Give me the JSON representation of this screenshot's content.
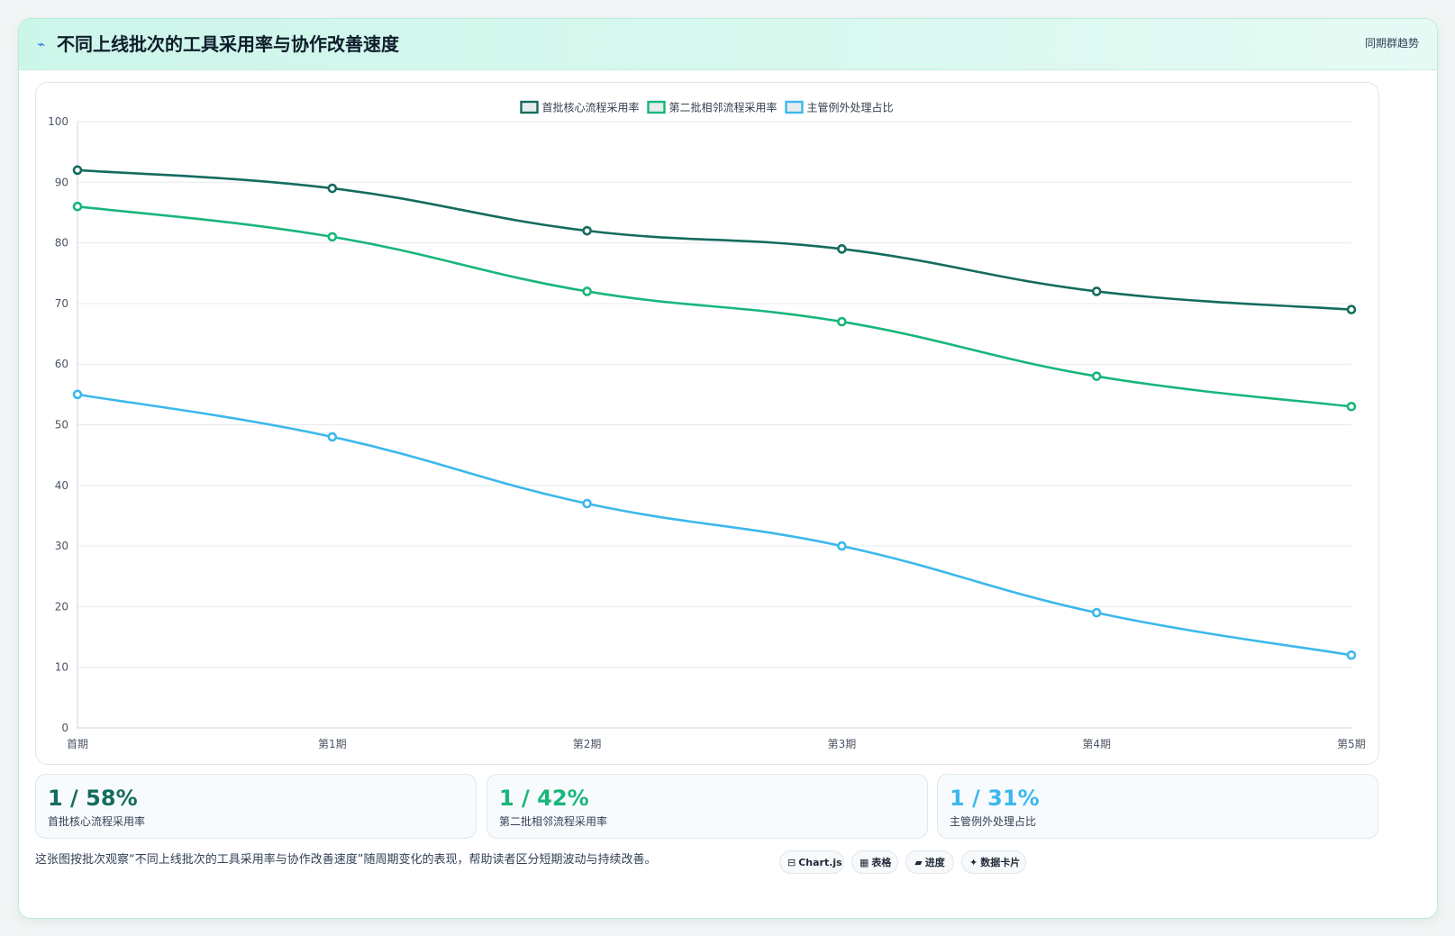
{
  "header": {
    "icon": "trend-icon",
    "title": "不同上线批次的工具采用率与协作改善速度",
    "right_label": "同期群趋势"
  },
  "chart_data": {
    "type": "line",
    "categories": [
      "首期",
      "第1期",
      "第2期",
      "第3期",
      "第4期",
      "第5期"
    ],
    "series": [
      {
        "name": "首批核心流程采用率",
        "color": "#146c5e",
        "values": [
          92,
          89,
          82,
          79,
          72,
          69
        ]
      },
      {
        "name": "第二批相邻流程采用率",
        "color": "#18b67a",
        "values": [
          86,
          81,
          72,
          67,
          58,
          53
        ]
      },
      {
        "name": "主管例外处理占比",
        "color": "#3cb8ec",
        "values": [
          55,
          48,
          37,
          30,
          19,
          12
        ]
      }
    ],
    "ylim": [
      0,
      100
    ],
    "yticks": [
      0,
      10,
      20,
      30,
      40,
      50,
      60,
      70,
      80,
      90,
      100
    ],
    "grid": true,
    "legend": "top-center"
  },
  "stats": [
    {
      "value": "1 / 58%",
      "label": "首批核心流程采用率",
      "color": "#146c5e"
    },
    {
      "value": "1 / 42%",
      "label": "第二批相邻流程采用率",
      "color": "#18b67a"
    },
    {
      "value": "1 / 31%",
      "label": "主管例外处理占比",
      "color": "#3cb8ec"
    }
  ],
  "footer": {
    "text": "这张图按批次观察“不同上线批次的工具采用率与协作改善速度”随周期变化的表现，帮助读者区分短期波动与持续改善。",
    "pills": [
      {
        "icon": "⊟",
        "label": "Chart.js"
      },
      {
        "icon": "▦",
        "label": "表格"
      },
      {
        "icon": "▰",
        "label": "进度"
      },
      {
        "icon": "✦",
        "label": "数据卡片"
      }
    ]
  }
}
